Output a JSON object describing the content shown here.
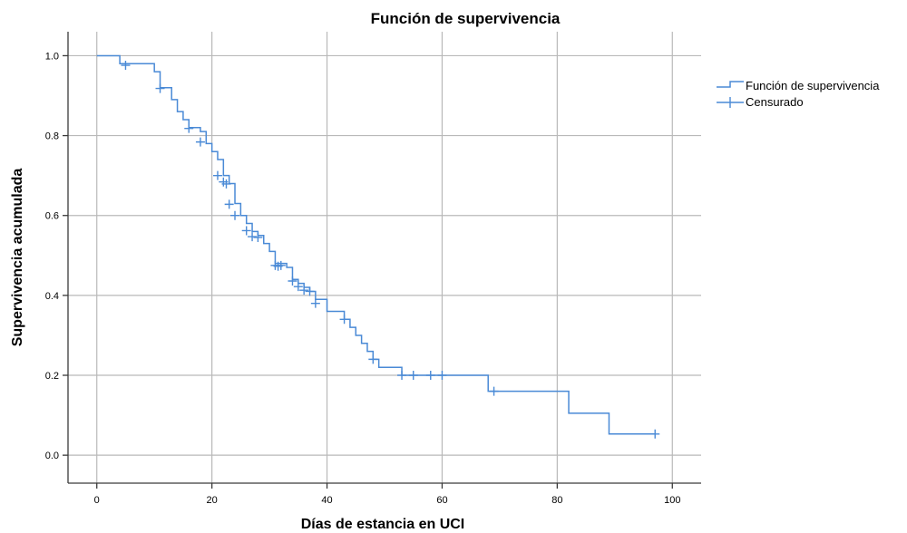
{
  "chart_data": {
    "type": "line",
    "title": "Función de supervivencia",
    "xlabel": "Días de estancia en UCI",
    "ylabel": "Supervivencia acumulada",
    "xlim": [
      -5,
      105
    ],
    "ylim": [
      -0.07,
      1.06
    ],
    "xticks": [
      0,
      20,
      40,
      60,
      80,
      100
    ],
    "xtick_labels": [
      "0",
      "20",
      "40",
      "60",
      "80",
      "100"
    ],
    "yticks": [
      0.0,
      0.2,
      0.4,
      0.6,
      0.8,
      1.0
    ],
    "ytick_labels": [
      "0.0",
      "0.2",
      "0.4",
      "0.6",
      "0.8",
      "1.0"
    ],
    "grid": true,
    "legend_position": "right",
    "colors": {
      "series": "#4a8ad6",
      "grid": "#b9b9b9",
      "axis": "#3a3a3a"
    },
    "series": [
      {
        "name": "Función de supervivencia",
        "kind": "step",
        "x": [
          0,
          4,
          10,
          11,
          13,
          14,
          15,
          16,
          18,
          19,
          20,
          21,
          22,
          23,
          24,
          25,
          26,
          27,
          28,
          29,
          30,
          31,
          33,
          34,
          35,
          36,
          37,
          38,
          40,
          43,
          44,
          45,
          46,
          47,
          48,
          49,
          53,
          68,
          82,
          89,
          97
        ],
        "y": [
          1.0,
          0.98,
          0.96,
          0.92,
          0.89,
          0.86,
          0.84,
          0.82,
          0.81,
          0.78,
          0.76,
          0.74,
          0.7,
          0.68,
          0.63,
          0.6,
          0.58,
          0.56,
          0.55,
          0.53,
          0.51,
          0.48,
          0.47,
          0.44,
          0.43,
          0.42,
          0.41,
          0.39,
          0.36,
          0.34,
          0.32,
          0.3,
          0.28,
          0.26,
          0.24,
          0.22,
          0.2,
          0.16,
          0.105,
          0.053,
          0.053
        ]
      },
      {
        "name": "Censurado",
        "kind": "censor",
        "x": [
          5,
          11,
          16,
          18,
          21,
          22,
          22.5,
          23,
          24,
          26,
          27,
          28,
          31,
          31.5,
          32,
          34,
          35,
          36,
          37,
          38,
          43,
          48,
          53,
          55,
          58,
          60,
          69,
          97
        ],
        "y": [
          0.976,
          0.918,
          0.818,
          0.784,
          0.7,
          0.684,
          0.679,
          0.628,
          0.6,
          0.562,
          0.547,
          0.545,
          0.475,
          0.473,
          0.475,
          0.436,
          0.422,
          0.413,
          0.41,
          0.38,
          0.34,
          0.24,
          0.2,
          0.2,
          0.2,
          0.2,
          0.16,
          0.053
        ]
      }
    ]
  }
}
